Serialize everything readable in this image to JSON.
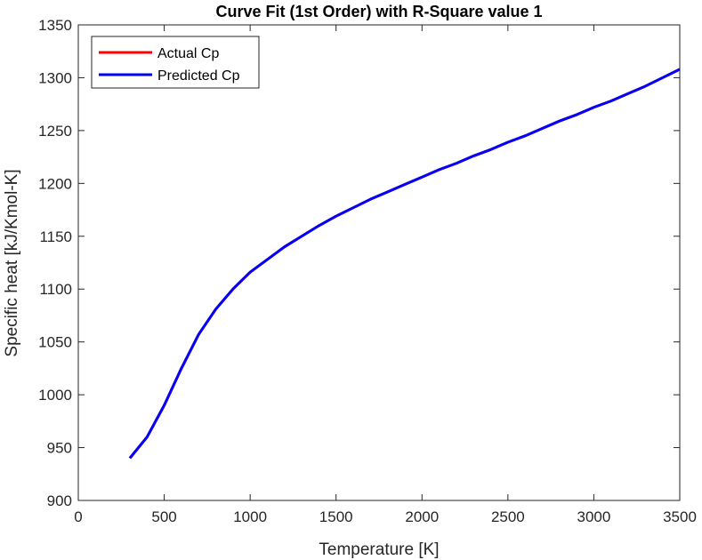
{
  "chart_data": {
    "type": "line",
    "title": "Curve Fit (1st Order) with R-Square value 1",
    "xlabel": "Temperature [K]",
    "ylabel": "Specific heat [kJ/Kmol-K]",
    "xlim": [
      0,
      3500
    ],
    "ylim": [
      900,
      1350
    ],
    "xticks": [
      0,
      500,
      1000,
      1500,
      2000,
      2500,
      3000,
      3500
    ],
    "yticks": [
      900,
      950,
      1000,
      1050,
      1100,
      1150,
      1200,
      1250,
      1300,
      1350
    ],
    "grid": false,
    "legend_position": "top-left",
    "series": [
      {
        "name": "Actual Cp",
        "color": "#ff0000",
        "x": [
          300,
          400,
          500,
          600,
          700,
          800,
          900,
          1000,
          1100,
          1200,
          1300,
          1400,
          1500,
          1600,
          1700,
          1800,
          1900,
          2000,
          2100,
          2200,
          2300,
          2400,
          2500,
          2600,
          2700,
          2800,
          2900,
          3000,
          3100,
          3200,
          3300,
          3400,
          3500
        ],
        "y": [
          940,
          960,
          990,
          1025,
          1057,
          1081,
          1100,
          1116,
          1128,
          1140,
          1150,
          1160,
          1169,
          1177,
          1185,
          1192,
          1199,
          1206,
          1213,
          1219,
          1226,
          1232,
          1239,
          1245,
          1252,
          1259,
          1265,
          1272,
          1278,
          1285,
          1292,
          1300,
          1308
        ]
      },
      {
        "name": "Predicted Cp",
        "color": "#0000ff",
        "x": [
          300,
          400,
          500,
          600,
          700,
          800,
          900,
          1000,
          1100,
          1200,
          1300,
          1400,
          1500,
          1600,
          1700,
          1800,
          1900,
          2000,
          2100,
          2200,
          2300,
          2400,
          2500,
          2600,
          2700,
          2800,
          2900,
          3000,
          3100,
          3200,
          3300,
          3400,
          3500
        ],
        "y": [
          940,
          960,
          990,
          1025,
          1057,
          1081,
          1100,
          1116,
          1128,
          1140,
          1150,
          1160,
          1169,
          1177,
          1185,
          1192,
          1199,
          1206,
          1213,
          1219,
          1226,
          1232,
          1239,
          1245,
          1252,
          1259,
          1265,
          1272,
          1278,
          1285,
          1292,
          1300,
          1308
        ]
      }
    ]
  }
}
